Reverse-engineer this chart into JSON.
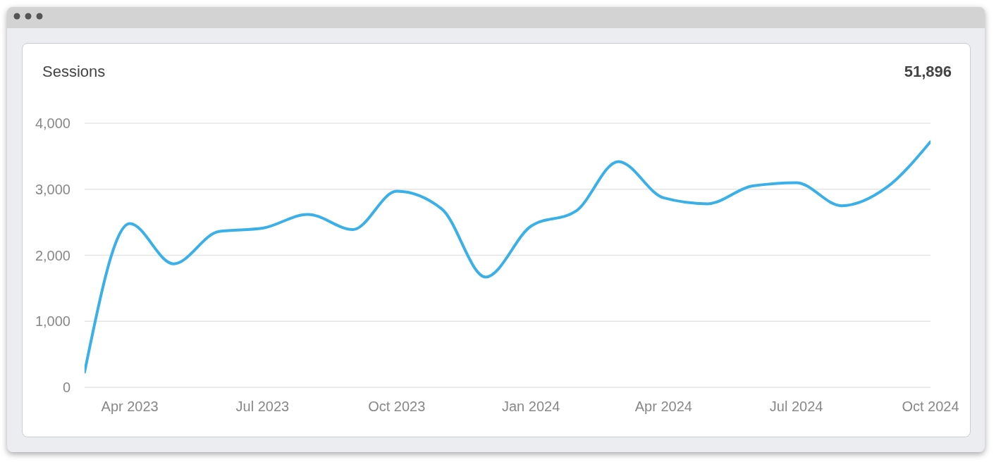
{
  "chart_data": {
    "type": "line",
    "title": "Sessions",
    "annotations": [
      "51,896"
    ],
    "x": [
      "2023-03",
      "2023-04",
      "2023-05",
      "2023-06",
      "2023-07",
      "2023-08",
      "2023-09",
      "2023-10",
      "2023-11",
      "2023-12",
      "2024-01",
      "2024-02",
      "2024-03",
      "2024-04",
      "2024-05",
      "2024-06",
      "2024-07",
      "2024-08",
      "2024-09",
      "2024-10"
    ],
    "series": [
      {
        "color": "#3ab0e8",
        "values": [
          230,
          2480,
          1870,
          2360,
          2410,
          2620,
          2390,
          2970,
          2700,
          1670,
          2440,
          2670,
          3420,
          2870,
          2780,
          3050,
          3100,
          2750,
          3030,
          3720
        ]
      }
    ],
    "xlim": [
      "2023-03",
      "2024-10"
    ],
    "xticks": [
      {
        "value": "2023-04",
        "label": "Apr 2023"
      },
      {
        "value": "2023-07",
        "label": "Jul 2023"
      },
      {
        "value": "2023-10",
        "label": "Oct 2023"
      },
      {
        "value": "2024-01",
        "label": "Jan 2024"
      },
      {
        "value": "2024-04",
        "label": "Apr 2024"
      },
      {
        "value": "2024-07",
        "label": "Jul 2024"
      },
      {
        "value": "2024-10",
        "label": "Oct 2024"
      }
    ],
    "ylim": [
      0,
      4000
    ],
    "yticks": [
      0,
      {
        "value": 1000,
        "label": "1,000"
      },
      {
        "value": 2000,
        "label": "2,000"
      },
      {
        "value": 3000,
        "label": "3,000"
      },
      {
        "value": 4000,
        "label": "4,000"
      }
    ],
    "grid": "y",
    "legend": false,
    "marker": "none",
    "line_style": "solid"
  }
}
